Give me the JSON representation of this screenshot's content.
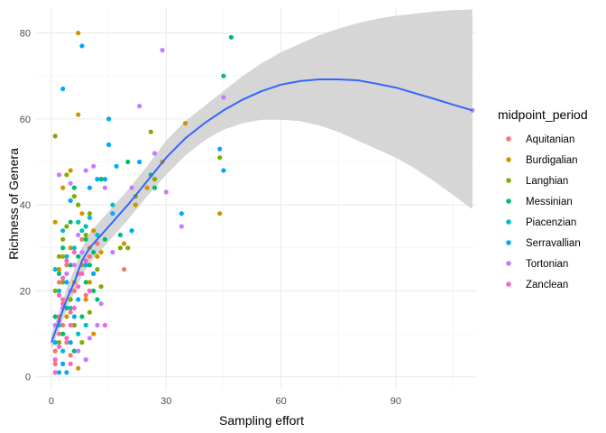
{
  "chart_data": {
    "type": "scatter",
    "title": "",
    "xlabel": "Sampling effort",
    "ylabel": "Richness of Genera",
    "xlim": [
      -4,
      111
    ],
    "ylim": [
      -3,
      86
    ],
    "x_ticks": [
      0,
      30,
      60,
      90
    ],
    "y_ticks": [
      0,
      20,
      40,
      60,
      80
    ],
    "grid": true,
    "legend": {
      "title": "midpoint_period",
      "placement": "right"
    },
    "series": [
      {
        "name": "Aquitanian",
        "color": "#F8766D",
        "points": [
          [
            1,
            3
          ],
          [
            1,
            6
          ],
          [
            2,
            10
          ],
          [
            2,
            14
          ],
          [
            3,
            18
          ],
          [
            2,
            22
          ],
          [
            4,
            26
          ],
          [
            5,
            15
          ],
          [
            6,
            20
          ],
          [
            7,
            24
          ],
          [
            8,
            32
          ],
          [
            9,
            19
          ],
          [
            10,
            28
          ],
          [
            12,
            31
          ],
          [
            4,
            8
          ],
          [
            3,
            12
          ],
          [
            19,
            25
          ],
          [
            6,
            12
          ],
          [
            5,
            5
          ]
        ]
      },
      {
        "name": "Burdigalian",
        "color": "#CD9600",
        "points": [
          [
            1,
            36
          ],
          [
            3,
            44
          ],
          [
            5,
            48
          ],
          [
            7,
            80
          ],
          [
            7,
            61
          ],
          [
            8,
            38
          ],
          [
            9,
            35
          ],
          [
            10,
            30
          ],
          [
            11,
            34
          ],
          [
            12,
            28
          ],
          [
            19,
            31
          ],
          [
            22,
            40
          ],
          [
            25,
            44
          ],
          [
            29,
            50
          ],
          [
            35,
            59
          ],
          [
            44,
            38
          ],
          [
            2,
            25
          ],
          [
            4,
            14
          ],
          [
            6,
            22
          ],
          [
            7,
            2
          ],
          [
            9,
            18
          ],
          [
            11,
            10
          ],
          [
            3,
            28
          ],
          [
            5,
            30
          ],
          [
            8,
            26
          ],
          [
            10,
            22
          ],
          [
            13,
            29
          ]
        ]
      },
      {
        "name": "Langhian",
        "color": "#7CAE00",
        "points": [
          [
            1,
            56
          ],
          [
            3,
            32
          ],
          [
            4,
            47
          ],
          [
            6,
            42
          ],
          [
            7,
            36
          ],
          [
            9,
            33
          ],
          [
            10,
            38
          ],
          [
            11,
            24
          ],
          [
            13,
            21
          ],
          [
            18,
            30
          ],
          [
            20,
            30
          ],
          [
            22,
            42
          ],
          [
            26,
            57
          ],
          [
            27,
            46
          ],
          [
            44,
            51
          ],
          [
            1,
            20
          ],
          [
            2,
            28
          ],
          [
            3,
            22
          ],
          [
            5,
            18
          ],
          [
            6,
            12
          ],
          [
            8,
            8
          ],
          [
            9,
            4
          ],
          [
            10,
            15
          ],
          [
            12,
            25
          ],
          [
            4,
            35
          ],
          [
            7,
            40
          ],
          [
            2,
            8
          ]
        ]
      },
      {
        "name": "Messinian",
        "color": "#00BE67",
        "points": [
          [
            2,
            24
          ],
          [
            3,
            30
          ],
          [
            5,
            36
          ],
          [
            6,
            44
          ],
          [
            7,
            28
          ],
          [
            9,
            32
          ],
          [
            10,
            26
          ],
          [
            11,
            20
          ],
          [
            13,
            46
          ],
          [
            14,
            32
          ],
          [
            18,
            33
          ],
          [
            20,
            50
          ],
          [
            26,
            47
          ],
          [
            27,
            44
          ],
          [
            45,
            70
          ],
          [
            47,
            79
          ],
          [
            1,
            14
          ],
          [
            3,
            10
          ],
          [
            4,
            16
          ],
          [
            6,
            6
          ],
          [
            8,
            14
          ],
          [
            9,
            22
          ],
          [
            11,
            29
          ],
          [
            12,
            18
          ],
          [
            5,
            26
          ]
        ]
      },
      {
        "name": "Piacenzian",
        "color": "#00BFC4",
        "points": [
          [
            1,
            25
          ],
          [
            2,
            20
          ],
          [
            3,
            34
          ],
          [
            4,
            28
          ],
          [
            6,
            30
          ],
          [
            7,
            36
          ],
          [
            8,
            34
          ],
          [
            9,
            35
          ],
          [
            10,
            37
          ],
          [
            12,
            33
          ],
          [
            16,
            40
          ],
          [
            21,
            34
          ],
          [
            2,
            12
          ],
          [
            3,
            6
          ],
          [
            5,
            16
          ],
          [
            7,
            10
          ],
          [
            9,
            12
          ]
        ]
      },
      {
        "name": "Serravallian",
        "color": "#00A9FF",
        "points": [
          [
            1,
            8
          ],
          [
            3,
            67
          ],
          [
            5,
            41
          ],
          [
            8,
            77
          ],
          [
            10,
            44
          ],
          [
            12,
            46
          ],
          [
            14,
            46
          ],
          [
            15,
            60
          ],
          [
            15,
            54
          ],
          [
            17,
            49
          ],
          [
            23,
            50
          ],
          [
            34,
            38
          ],
          [
            44,
            53
          ],
          [
            45,
            48
          ],
          [
            2,
            1
          ],
          [
            3,
            3
          ],
          [
            4,
            22
          ],
          [
            6,
            14
          ],
          [
            7,
            18
          ],
          [
            9,
            26
          ],
          [
            11,
            24
          ],
          [
            16,
            38
          ],
          [
            21,
            34
          ],
          [
            5,
            8
          ],
          [
            4,
            1
          ]
        ]
      },
      {
        "name": "Tortonian",
        "color": "#C77CFF",
        "points": [
          [
            2,
            47
          ],
          [
            5,
            45
          ],
          [
            7,
            33
          ],
          [
            9,
            48
          ],
          [
            11,
            49
          ],
          [
            14,
            44
          ],
          [
            16,
            29
          ],
          [
            21,
            44
          ],
          [
            23,
            63
          ],
          [
            27,
            52
          ],
          [
            29,
            76
          ],
          [
            30,
            43
          ],
          [
            34,
            35
          ],
          [
            45,
            65
          ],
          [
            110,
            62
          ],
          [
            1,
            12
          ],
          [
            3,
            16
          ],
          [
            5,
            20
          ],
          [
            6,
            26
          ],
          [
            8,
            29
          ],
          [
            9,
            4
          ],
          [
            10,
            9
          ],
          [
            12,
            12
          ],
          [
            13,
            17
          ],
          [
            4,
            24
          ],
          [
            7,
            6
          ]
        ]
      },
      {
        "name": "Zanclean",
        "color": "#FF61CC",
        "points": [
          [
            1,
            1
          ],
          [
            1,
            4
          ],
          [
            2,
            7
          ],
          [
            2,
            13
          ],
          [
            3,
            17
          ],
          [
            3,
            23
          ],
          [
            4,
            27
          ],
          [
            5,
            12
          ],
          [
            6,
            16
          ],
          [
            7,
            21
          ],
          [
            8,
            24
          ],
          [
            9,
            27
          ],
          [
            14,
            12
          ],
          [
            2,
            19
          ],
          [
            4,
            9
          ],
          [
            5,
            3
          ],
          [
            6,
            29
          ],
          [
            10,
            20
          ]
        ]
      }
    ],
    "smooth": {
      "color": "#3366FF",
      "fill": "#d4d4d4",
      "fit": [
        [
          0,
          8
        ],
        [
          2,
          13
        ],
        [
          4,
          18
        ],
        [
          6,
          22
        ],
        [
          8,
          27
        ],
        [
          10,
          30
        ],
        [
          15,
          35
        ],
        [
          20,
          40
        ],
        [
          25,
          45.5
        ],
        [
          30,
          51
        ],
        [
          35,
          55.5
        ],
        [
          40,
          59
        ],
        [
          45,
          62
        ],
        [
          50,
          64.5
        ],
        [
          55,
          66.5
        ],
        [
          60,
          68
        ],
        [
          65,
          68.8
        ],
        [
          70,
          69.2
        ],
        [
          75,
          69.2
        ],
        [
          80,
          69
        ],
        [
          85,
          68.2
        ],
        [
          90,
          67.3
        ],
        [
          95,
          66
        ],
        [
          100,
          64.7
        ],
        [
          105,
          63.3
        ],
        [
          110,
          62
        ]
      ],
      "lower": [
        [
          0,
          6
        ],
        [
          2,
          11
        ],
        [
          4,
          15.5
        ],
        [
          6,
          19.5
        ],
        [
          8,
          23.5
        ],
        [
          10,
          26.5
        ],
        [
          15,
          31.5
        ],
        [
          20,
          36.5
        ],
        [
          25,
          42
        ],
        [
          30,
          47
        ],
        [
          35,
          51.5
        ],
        [
          40,
          55
        ],
        [
          45,
          57.5
        ],
        [
          50,
          59
        ],
        [
          55,
          59.8
        ],
        [
          60,
          59.8
        ],
        [
          65,
          59.5
        ],
        [
          70,
          58.5
        ],
        [
          75,
          57
        ],
        [
          80,
          55
        ],
        [
          85,
          53
        ],
        [
          90,
          51
        ],
        [
          95,
          48.5
        ],
        [
          100,
          45.5
        ],
        [
          105,
          42.3
        ],
        [
          110,
          39
        ]
      ],
      "upper": [
        [
          0,
          10
        ],
        [
          2,
          15
        ],
        [
          4,
          20.5
        ],
        [
          6,
          25
        ],
        [
          8,
          30
        ],
        [
          10,
          33.5
        ],
        [
          15,
          38.5
        ],
        [
          20,
          43.5
        ],
        [
          25,
          49
        ],
        [
          30,
          55
        ],
        [
          35,
          59.5
        ],
        [
          40,
          63
        ],
        [
          45,
          66.5
        ],
        [
          50,
          70
        ],
        [
          55,
          73
        ],
        [
          60,
          75.5
        ],
        [
          65,
          77.5
        ],
        [
          70,
          79.5
        ],
        [
          75,
          81
        ],
        [
          80,
          82.3
        ],
        [
          85,
          83.3
        ],
        [
          90,
          84
        ],
        [
          95,
          84.5
        ],
        [
          100,
          85
        ],
        [
          105,
          85.3
        ],
        [
          110,
          85.5
        ]
      ]
    }
  }
}
